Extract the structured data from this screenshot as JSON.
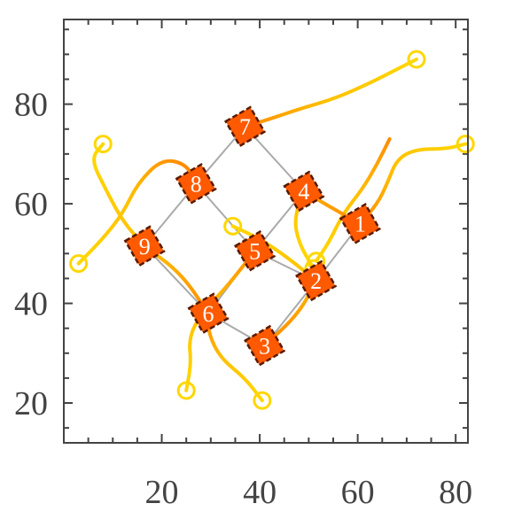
{
  "chart_data": {
    "type": "scatter",
    "title": "",
    "xlabel": "",
    "ylabel": "",
    "xlim": [
      0,
      82.5
    ],
    "ylim": [
      12,
      97
    ],
    "x_ticks": [
      20,
      40,
      60,
      80
    ],
    "y_ticks": [
      20,
      40,
      60,
      80
    ],
    "grid": false,
    "legend": "none",
    "colors": {
      "trajectory_yellow": "#ffd700",
      "trajectory_orange": "#ff8c00",
      "robot_fill": "#ff5a00",
      "robot_outline": "#5a1a00",
      "formation_edge": "#aaaaaa",
      "frame": "#444444"
    },
    "robots": [
      {
        "label": "1",
        "x": 60.5,
        "y": 56.0
      },
      {
        "label": "2",
        "x": 51.5,
        "y": 44.5
      },
      {
        "label": "3",
        "x": 41.0,
        "y": 31.5
      },
      {
        "label": "4",
        "x": 49.0,
        "y": 62.5
      },
      {
        "label": "5",
        "x": 39.0,
        "y": 50.5
      },
      {
        "label": "6",
        "x": 29.5,
        "y": 38.0
      },
      {
        "label": "7",
        "x": 37.0,
        "y": 75.5
      },
      {
        "label": "8",
        "x": 27.0,
        "y": 64.0
      },
      {
        "label": "9",
        "x": 16.5,
        "y": 51.5
      }
    ],
    "formation_edges": [
      [
        9,
        8
      ],
      [
        8,
        7
      ],
      [
        7,
        4
      ],
      [
        4,
        1
      ],
      [
        1,
        2
      ],
      [
        2,
        3
      ],
      [
        3,
        6
      ],
      [
        6,
        9
      ],
      [
        8,
        5
      ],
      [
        5,
        2
      ],
      [
        4,
        5
      ],
      [
        5,
        6
      ]
    ],
    "trajectories": [
      {
        "robot": "1",
        "start": [
          82.0,
          72.0
        ],
        "points": [
          [
            82.0,
            72.0
          ],
          [
            78.0,
            71.0
          ],
          [
            72.0,
            71.0
          ],
          [
            68.0,
            69.0
          ],
          [
            66.0,
            64.0
          ],
          [
            64.0,
            60.0
          ],
          [
            60.5,
            56.0
          ]
        ]
      },
      {
        "robot": "2",
        "start": [
          51.5,
          48.5
        ],
        "points": [
          [
            51.5,
            48.5
          ],
          [
            54.0,
            52.0
          ],
          [
            57.0,
            58.0
          ],
          [
            61.0,
            63.0
          ],
          [
            64.0,
            68.0
          ],
          [
            66.5,
            73.0
          ]
        ]
      },
      {
        "robot": "3",
        "start": [
          34.5,
          55.5
        ],
        "points": [
          [
            34.5,
            55.5
          ],
          [
            40.0,
            53.0
          ],
          [
            46.0,
            49.0
          ],
          [
            51.5,
            44.5
          ],
          [
            48.0,
            38.0
          ],
          [
            41.0,
            31.5
          ]
        ]
      },
      {
        "robot": "4",
        "start": [
          72.0,
          89.0
        ],
        "points": [
          [
            72.0,
            89.0
          ],
          [
            68.0,
            87.0
          ],
          [
            62.0,
            84.0
          ],
          [
            55.0,
            81.0
          ],
          [
            48.0,
            79.0
          ],
          [
            42.0,
            77.0
          ],
          [
            37.0,
            75.5
          ]
        ]
      },
      {
        "robot": "5",
        "start": [
          8.0,
          72.0
        ],
        "points": [
          [
            8.0,
            72.0
          ],
          [
            5.5,
            69.0
          ],
          [
            8.5,
            63.0
          ],
          [
            12.0,
            56.5
          ],
          [
            16.5,
            51.5
          ],
          [
            24.0,
            46.0
          ],
          [
            29.5,
            38.0
          ]
        ]
      },
      {
        "robot": "6",
        "start": [
          25.0,
          22.5
        ],
        "points": [
          [
            25.0,
            22.5
          ],
          [
            26.0,
            28.0
          ],
          [
            25.5,
            33.0
          ],
          [
            28.0,
            38.0
          ],
          [
            33.0,
            43.0
          ],
          [
            39.0,
            50.5
          ]
        ]
      },
      {
        "robot": "7",
        "start": [
          40.5,
          20.5
        ],
        "points": [
          [
            40.5,
            20.5
          ],
          [
            37.0,
            25.0
          ],
          [
            32.0,
            29.0
          ],
          [
            29.5,
            34.0
          ],
          [
            29.5,
            38.0
          ]
        ]
      },
      {
        "robot": "8",
        "start": [
          3.0,
          48.0
        ],
        "points": [
          [
            3.0,
            48.0
          ],
          [
            8.0,
            53.0
          ],
          [
            12.0,
            58.0
          ],
          [
            15.0,
            64.0
          ],
          [
            20.0,
            69.0
          ],
          [
            25.0,
            68.0
          ],
          [
            27.0,
            64.0
          ]
        ]
      },
      {
        "robot": "9",
        "start": [
          51.0,
          47.0
        ],
        "points": [
          [
            51.0,
            47.0
          ],
          [
            48.0,
            52.0
          ],
          [
            47.0,
            57.0
          ],
          [
            49.0,
            62.5
          ],
          [
            55.0,
            59.0
          ],
          [
            60.5,
            56.0
          ]
        ]
      }
    ]
  }
}
